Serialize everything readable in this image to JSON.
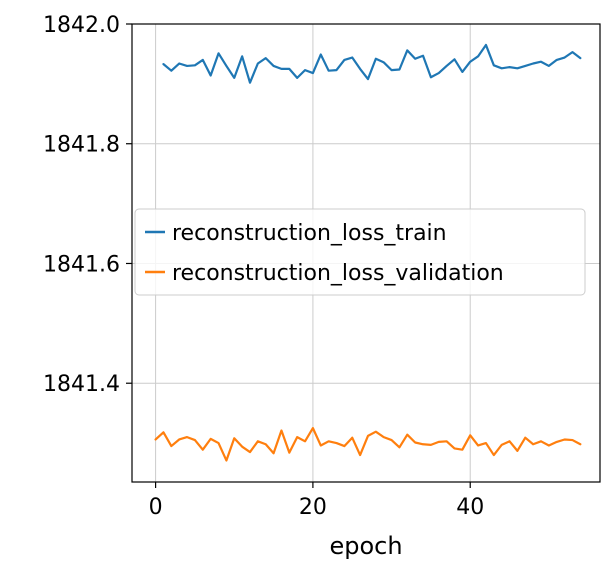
{
  "chart_data": {
    "type": "line",
    "title": "",
    "xlabel": "epoch",
    "ylabel": "",
    "xlim": [
      -3,
      56.5
    ],
    "ylim": [
      1841.235,
      1842.0
    ],
    "xticks": [
      0,
      20,
      40
    ],
    "xtick_labels": [
      "0",
      "20",
      "40"
    ],
    "yticks": [
      1841.4,
      1841.6,
      1841.8,
      1842.0
    ],
    "ytick_labels": [
      "1841.4",
      "1841.6",
      "1841.8",
      "1842.0"
    ],
    "grid": true,
    "legend_position": "center-left",
    "series": [
      {
        "name": "reconstruction_loss_train",
        "color": "#1f77b4",
        "x": [
          1,
          2,
          3,
          4,
          5,
          6,
          7,
          8,
          9,
          10,
          11,
          12,
          13,
          14,
          15,
          16,
          17,
          18,
          19,
          20,
          21,
          22,
          23,
          24,
          25,
          26,
          27,
          28,
          29,
          30,
          31,
          32,
          33,
          34,
          35,
          36,
          37,
          38,
          39,
          40,
          41,
          42,
          43,
          44,
          45,
          46,
          47,
          48,
          49,
          50,
          51,
          52,
          53,
          54
        ],
        "values": [
          1841.933,
          1841.922,
          1841.934,
          1841.93,
          1841.931,
          1841.94,
          1841.914,
          1841.951,
          1841.93,
          1841.91,
          1841.946,
          1841.902,
          1841.934,
          1841.943,
          1841.93,
          1841.925,
          1841.925,
          1841.91,
          1841.923,
          1841.918,
          1841.949,
          1841.922,
          1841.923,
          1841.94,
          1841.944,
          1841.925,
          1841.908,
          1841.942,
          1841.936,
          1841.923,
          1841.924,
          1841.956,
          1841.942,
          1841.947,
          1841.911,
          1841.918,
          1841.93,
          1841.941,
          1841.92,
          1841.937,
          1841.946,
          1841.965,
          1841.931,
          1841.926,
          1841.928,
          1841.926,
          1841.93,
          1841.934,
          1841.937,
          1841.93,
          1841.94,
          1841.944,
          1841.953,
          1841.943
        ]
      },
      {
        "name": "reconstruction_loss_validation",
        "color": "#ff7f0e",
        "x": [
          0,
          1,
          2,
          3,
          4,
          5,
          6,
          7,
          8,
          9,
          10,
          11,
          12,
          13,
          14,
          15,
          16,
          17,
          18,
          19,
          20,
          21,
          22,
          23,
          24,
          25,
          26,
          27,
          28,
          29,
          30,
          31,
          32,
          33,
          34,
          35,
          36,
          37,
          38,
          39,
          40,
          41,
          42,
          43,
          44,
          45,
          46,
          47,
          48,
          49,
          50,
          51,
          52,
          53,
          54
        ],
        "values": [
          1841.306,
          1841.318,
          1841.295,
          1841.306,
          1841.31,
          1841.305,
          1841.289,
          1841.307,
          1841.3,
          1841.271,
          1841.308,
          1841.294,
          1841.285,
          1841.303,
          1841.298,
          1841.283,
          1841.321,
          1841.284,
          1841.31,
          1841.303,
          1841.325,
          1841.296,
          1841.303,
          1841.3,
          1841.295,
          1841.309,
          1841.28,
          1841.312,
          1841.319,
          1841.31,
          1841.305,
          1841.293,
          1841.314,
          1841.301,
          1841.298,
          1841.297,
          1841.302,
          1841.303,
          1841.291,
          1841.289,
          1841.313,
          1841.296,
          1841.3,
          1841.28,
          1841.297,
          1841.303,
          1841.287,
          1841.309,
          1841.298,
          1841.303,
          1841.296,
          1841.302,
          1841.306,
          1841.305,
          1841.298
        ]
      }
    ]
  }
}
